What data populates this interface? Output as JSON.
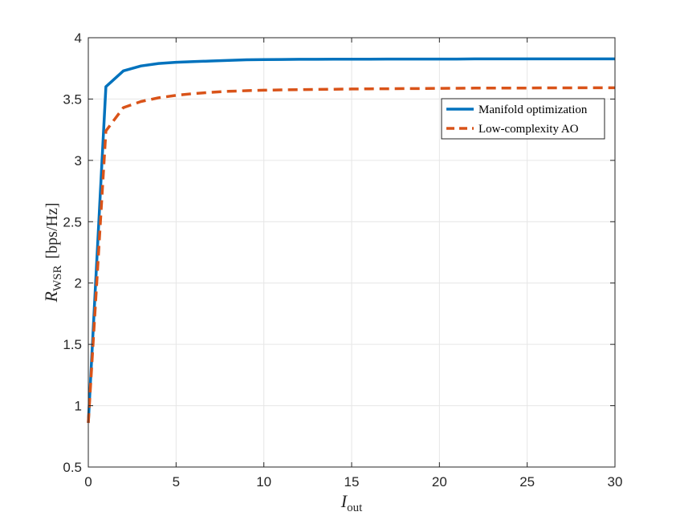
{
  "chart_data": {
    "type": "line",
    "title": "",
    "xlabel": {
      "main": "I",
      "sub": "out"
    },
    "ylabel": {
      "main": "R",
      "sub": "WSR",
      "unit": "[bps/Hz]"
    },
    "xlim": [
      0,
      30
    ],
    "ylim": [
      0.5,
      4
    ],
    "xticks": [
      0,
      5,
      10,
      15,
      20,
      25,
      30
    ],
    "yticks": [
      0.5,
      1,
      1.5,
      2,
      2.5,
      3,
      3.5,
      4
    ],
    "xtick_labels": [
      "0",
      "5",
      "10",
      "15",
      "20",
      "25",
      "30"
    ],
    "ytick_labels": [
      "0.5",
      "1",
      "1.5",
      "2",
      "2.5",
      "3",
      "3.5",
      "4"
    ],
    "grid": true,
    "legend_position": "top-right",
    "series": [
      {
        "name": "Manifold optimization",
        "color": "#0072BD",
        "style": "solid",
        "x": [
          0,
          1,
          2,
          3,
          4,
          5,
          6,
          7,
          8,
          9,
          10,
          11,
          12,
          13,
          14,
          15,
          16,
          17,
          18,
          19,
          20,
          21,
          22,
          23,
          24,
          25,
          26,
          27,
          28,
          29,
          30
        ],
        "y": [
          0.86,
          3.6,
          3.73,
          3.77,
          3.79,
          3.8,
          3.805,
          3.81,
          3.815,
          3.82,
          3.822,
          3.823,
          3.824,
          3.824,
          3.825,
          3.825,
          3.825,
          3.826,
          3.826,
          3.826,
          3.826,
          3.826,
          3.827,
          3.827,
          3.827,
          3.827,
          3.827,
          3.827,
          3.827,
          3.827,
          3.827
        ]
      },
      {
        "name": "Low-complexity AO",
        "color": "#D95319",
        "style": "dashed",
        "x": [
          0,
          1,
          2,
          3,
          4,
          5,
          6,
          7,
          8,
          9,
          10,
          11,
          12,
          13,
          14,
          15,
          16,
          17,
          18,
          19,
          20,
          21,
          22,
          23,
          24,
          25,
          26,
          27,
          28,
          29,
          30
        ],
        "y": [
          0.86,
          3.24,
          3.43,
          3.48,
          3.51,
          3.53,
          3.545,
          3.555,
          3.563,
          3.568,
          3.572,
          3.575,
          3.577,
          3.579,
          3.58,
          3.582,
          3.583,
          3.584,
          3.585,
          3.586,
          3.587,
          3.588,
          3.589,
          3.589,
          3.59,
          3.59,
          3.591,
          3.591,
          3.592,
          3.592,
          3.592
        ]
      }
    ]
  }
}
